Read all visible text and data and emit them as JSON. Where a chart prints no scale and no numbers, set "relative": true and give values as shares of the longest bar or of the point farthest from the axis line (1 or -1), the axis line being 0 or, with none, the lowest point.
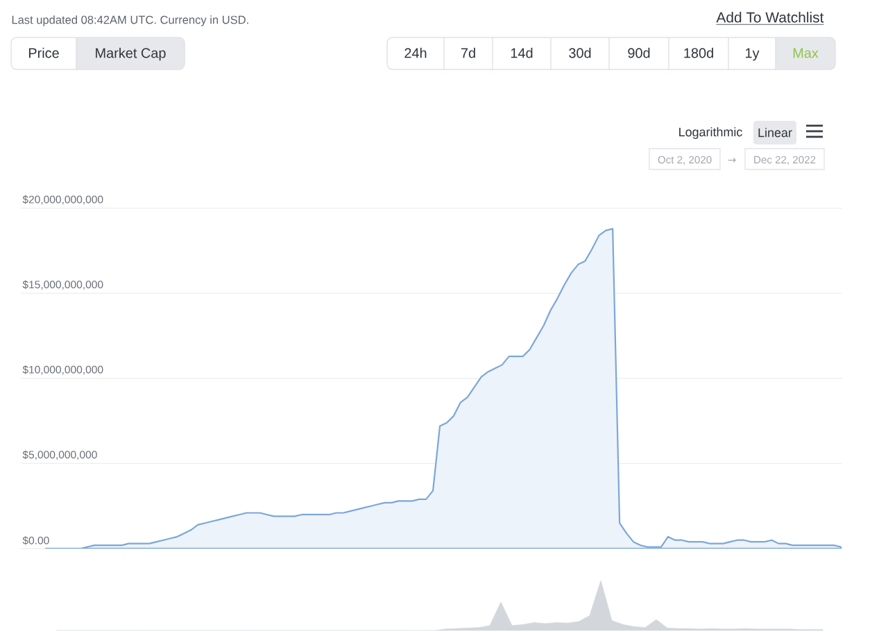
{
  "chart_data": [
    {
      "type": "area",
      "annotations": [
        "Last updated 08:42AM UTC. Currency in USD.",
        "Add To Watchlist",
        "Price",
        "Market Cap",
        "24h",
        "7d",
        "14d",
        "30d",
        "90d",
        "180d",
        "1y",
        "Max",
        "Logarithmic",
        "Linear",
        "Oct 2, 2020",
        "→",
        "Dec 22, 2022"
      ],
      "categories": [
        null,
        null,
        null,
        null,
        null,
        null,
        null,
        null,
        null,
        null,
        null,
        null,
        null,
        null,
        null,
        null,
        null,
        null,
        null,
        null,
        null,
        null,
        null,
        null,
        null,
        null,
        null,
        null,
        null,
        null,
        null,
        null,
        null,
        null,
        null,
        null,
        null,
        null,
        null,
        null,
        null,
        null,
        null,
        null,
        null,
        null,
        null,
        null,
        null,
        null,
        null,
        null,
        null,
        null,
        null,
        null,
        null,
        null,
        null,
        null,
        null,
        null,
        null,
        null,
        null,
        null,
        null,
        null,
        null,
        null,
        null,
        null,
        null,
        null,
        null,
        null,
        null,
        null,
        null,
        null,
        null,
        null,
        null,
        null,
        null,
        null,
        null,
        null,
        null,
        null,
        null,
        null,
        null,
        null,
        null,
        null,
        null,
        null,
        null,
        null,
        null,
        null,
        null,
        null,
        null,
        null,
        null,
        null,
        null,
        null,
        null,
        null,
        null,
        null,
        null,
        null
      ],
      "series": [
        {
          "color": "#7ba7d9",
          "values": [
            0,
            0,
            0,
            0,
            0,
            0,
            100000000.0,
            200000000.0,
            200000000.0,
            200000000.0,
            200000000.0,
            200000000.0,
            300000000.0,
            300000000.0,
            300000000.0,
            300000000.0,
            400000000.0,
            500000000.0,
            600000000.0,
            700000000.0,
            900000000.0,
            1100000000.0,
            1400000000.0,
            1500000000.0,
            1600000000.0,
            1700000000.0,
            1800000000.0,
            1900000000.0,
            2000000000.0,
            2100000000.0,
            2100000000.0,
            2100000000.0,
            2000000000.0,
            1900000000.0,
            1900000000.0,
            1900000000.0,
            1900000000.0,
            2000000000.0,
            2000000000.0,
            2000000000.0,
            2000000000.0,
            2000000000.0,
            2100000000.0,
            2100000000.0,
            2200000000.0,
            2300000000.0,
            2400000000.0,
            2500000000.0,
            2600000000.0,
            2700000000.0,
            2700000000.0,
            2800000000.0,
            2800000000.0,
            2800000000.0,
            2900000000.0,
            2900000000.0,
            3400000000.0,
            7200000000.0,
            7400000000.0,
            7800000000.0,
            8600000000.0,
            8900000000.0,
            9500000000.0,
            10100000000.0,
            10400000000.0,
            10600000000.0,
            10800000000.0,
            11300000000.0,
            11300000000.0,
            11300000000.0,
            11700000000.0,
            12400000000.0,
            13100000000.0,
            14000000000.0,
            14700000000.0,
            15500000000.0,
            16200000000.0,
            16700000000.0,
            16900000000.0,
            17600000000.0,
            18400000000.0,
            18700000000.0,
            18800000000.0,
            1500000000.0,
            900000000.0,
            400000000.0,
            200000000.0,
            100000000.0,
            100000000.0,
            100000000.0,
            700000000.0,
            500000000.0,
            500000000.0,
            400000000.0,
            400000000.0,
            400000000.0,
            300000000.0,
            300000000.0,
            300000000.0,
            400000000.0,
            500000000.0,
            500000000.0,
            400000000.0,
            400000000.0,
            400000000.0,
            500000000.0,
            300000000.0,
            300000000.0,
            200000000.0,
            200000000.0,
            200000000.0,
            200000000.0,
            200000000.0,
            200000000.0,
            200000000.0,
            100000000.0
          ]
        }
      ],
      "ylim": [
        0,
        20000000000
      ],
      "yticks": [
        {
          "value": 0,
          "label": "$0.00"
        },
        {
          "value": 5000000000,
          "label": "$5,000,000,000"
        },
        {
          "value": 10000000000,
          "label": "$10,000,000,000"
        },
        {
          "value": 15000000000,
          "label": "$15,000,000,000"
        },
        {
          "value": 20000000000,
          "label": "$20,000,000,000"
        }
      ],
      "grid": "y"
    },
    {
      "type": "area",
      "relative": true,
      "categories": [
        null,
        null,
        null,
        null,
        null,
        null,
        null,
        null,
        null,
        null,
        null,
        null,
        null,
        null,
        null,
        null,
        null,
        null,
        null,
        null,
        null,
        null,
        null,
        null,
        null,
        null,
        null,
        null,
        null,
        null,
        null,
        null,
        null,
        null,
        null,
        null,
        null,
        null,
        null,
        null,
        null,
        null,
        null,
        null,
        null,
        null,
        null,
        null,
        null,
        null,
        null,
        null,
        null,
        null,
        null,
        null,
        null,
        null,
        null,
        null,
        null,
        null,
        null,
        null,
        null,
        null,
        null,
        null,
        null,
        null
      ],
      "series": [
        {
          "color": "#d3d7dc",
          "values": [
            0,
            0,
            0,
            0,
            0,
            0,
            0,
            0,
            0,
            0,
            0,
            0,
            0,
            0,
            0,
            0,
            0,
            0,
            0,
            0,
            0,
            0,
            0,
            0,
            0,
            0,
            0,
            0,
            0,
            0,
            0,
            0,
            0,
            0,
            0,
            0.03,
            0.04,
            0.05,
            0.06,
            0.1,
            0.57,
            0.1,
            0.12,
            0.16,
            0.14,
            0.16,
            0.15,
            0.18,
            0.3,
            1,
            0.2,
            0.12,
            0.08,
            0.06,
            0.22,
            0.05,
            0.04,
            0.04,
            0.03,
            0.04,
            0.03,
            0.03,
            0.04,
            0.03,
            0.03,
            0.03,
            0.03,
            0.02,
            0.02,
            0.02
          ]
        }
      ]
    }
  ]
}
